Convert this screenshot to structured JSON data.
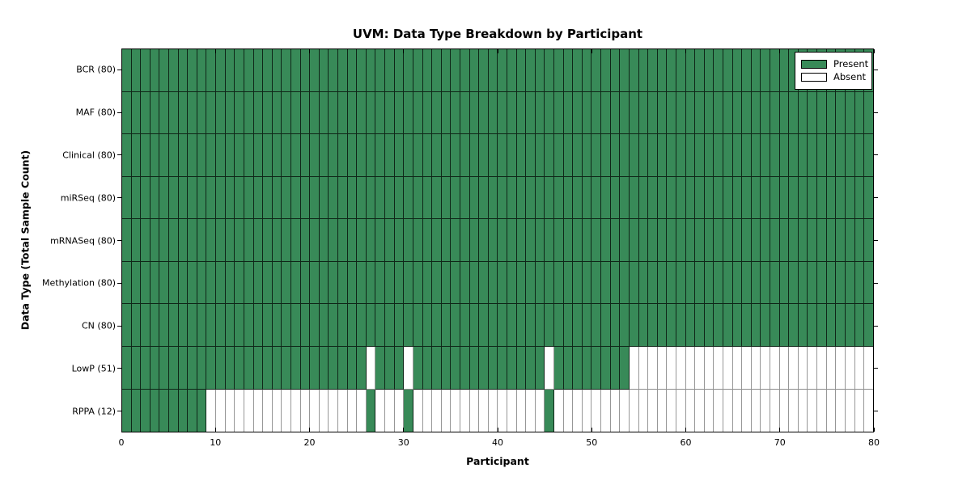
{
  "chart_data": {
    "type": "heatmap",
    "title": "UVM: Data Type Breakdown by Participant",
    "xlabel": "Participant",
    "ylabel": "Data Type (Total Sample Count)",
    "xlim": [
      0,
      80
    ],
    "n_participants": 80,
    "x_ticks": [
      0,
      10,
      20,
      30,
      40,
      50,
      60,
      70,
      80
    ],
    "grid": "cell-borders",
    "legend_position": "upper-right-inside",
    "legend": [
      {
        "label": "Present",
        "color": "#388A58"
      },
      {
        "label": "Absent",
        "color": "#FFFFFF"
      }
    ],
    "colors": {
      "present": "#388A58",
      "absent": "#FFFFFF"
    },
    "categories": [
      "BCR (80)",
      "MAF (80)",
      "Clinical (80)",
      "miRSeq (80)",
      "mRNASeq (80)",
      "Methylation (80)",
      "CN (80)",
      "LowP (51)",
      "RPPA (12)"
    ],
    "series": [
      {
        "name": "BCR",
        "total": 80,
        "label": "BCR (80)",
        "present_ranges": [
          [
            0,
            79
          ]
        ]
      },
      {
        "name": "MAF",
        "total": 80,
        "label": "MAF (80)",
        "present_ranges": [
          [
            0,
            79
          ]
        ]
      },
      {
        "name": "Clinical",
        "total": 80,
        "label": "Clinical (80)",
        "present_ranges": [
          [
            0,
            79
          ]
        ]
      },
      {
        "name": "miRSeq",
        "total": 80,
        "label": "miRSeq (80)",
        "present_ranges": [
          [
            0,
            79
          ]
        ]
      },
      {
        "name": "mRNASeq",
        "total": 80,
        "label": "mRNASeq (80)",
        "present_ranges": [
          [
            0,
            79
          ]
        ]
      },
      {
        "name": "Methylation",
        "total": 80,
        "label": "Methylation (80)",
        "present_ranges": [
          [
            0,
            79
          ]
        ]
      },
      {
        "name": "CN",
        "total": 80,
        "label": "CN (80)",
        "present_ranges": [
          [
            0,
            79
          ]
        ]
      },
      {
        "name": "LowP",
        "total": 51,
        "label": "LowP (51)",
        "present_ranges": [
          [
            0,
            25
          ],
          [
            27,
            29
          ],
          [
            31,
            44
          ],
          [
            46,
            53
          ]
        ]
      },
      {
        "name": "RPPA",
        "total": 12,
        "label": "RPPA (12)",
        "present_ranges": [
          [
            0,
            8
          ],
          [
            26,
            26
          ],
          [
            30,
            30
          ],
          [
            45,
            45
          ]
        ]
      }
    ]
  }
}
